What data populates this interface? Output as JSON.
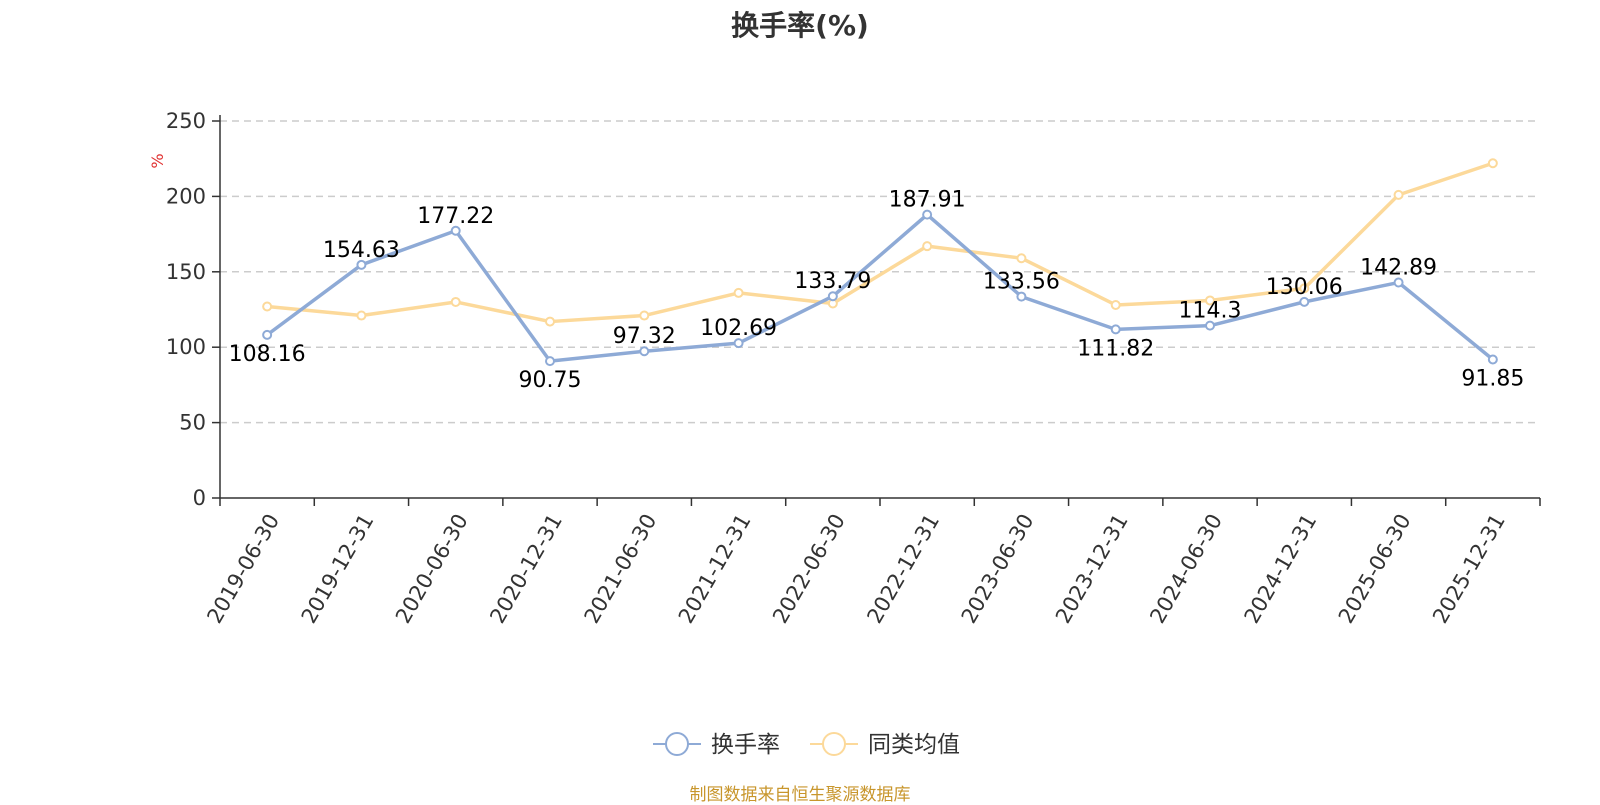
{
  "chart_data": {
    "type": "line",
    "title": "换手率(%)",
    "ylabel": "%",
    "ylim": [
      0,
      250
    ],
    "yticks": [
      0,
      50,
      100,
      150,
      200,
      250
    ],
    "grid": true,
    "legend_position": "bottom-center",
    "x": [
      "2019-06-30",
      "2019-12-31",
      "2020-06-30",
      "2020-12-31",
      "2021-06-30",
      "2021-12-31",
      "2022-06-30",
      "2022-12-31",
      "2023-06-30",
      "2023-12-31",
      "2024-06-30",
      "2024-12-31",
      "2025-06-30",
      "2025-12-31"
    ],
    "series": [
      {
        "name": "换手率",
        "color": "#8eaad6",
        "values": [
          108.16,
          154.63,
          177.22,
          90.75,
          97.32,
          102.69,
          133.79,
          187.91,
          133.56,
          111.82,
          114.3,
          130.06,
          142.89,
          91.85
        ],
        "labels": [
          "108.16",
          "154.63",
          "177.22",
          "90.75",
          "97.32",
          "102.69",
          "133.79",
          "187.91",
          "133.56",
          "111.82",
          "114.3",
          "130.06",
          "142.89",
          "91.85"
        ]
      },
      {
        "name": "同类均值",
        "color": "#fcd99a",
        "values": [
          127,
          121,
          130,
          117,
          121,
          136,
          129,
          167,
          159,
          128,
          131,
          139,
          201,
          222
        ]
      }
    ]
  },
  "source_note": "制图数据来自恒生聚源数据库"
}
